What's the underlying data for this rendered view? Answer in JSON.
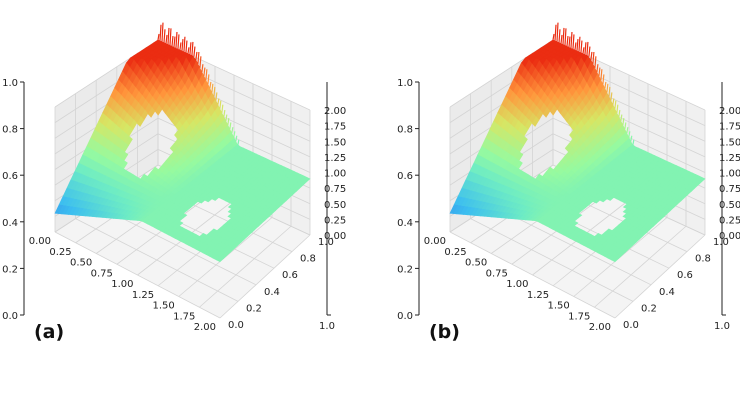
{
  "chart_data": [
    {
      "type": "surface3d",
      "panel_label": "(a)",
      "x_ticks": [
        "0.00",
        "0.25",
        "0.50",
        "0.75",
        "1.00",
        "1.25",
        "1.50",
        "1.75",
        "2.00"
      ],
      "y_ticks": [
        "0.0",
        "0.2",
        "0.4",
        "0.6",
        "0.8",
        "1.0"
      ],
      "z_ticks": [
        "0.00",
        "0.25",
        "0.50",
        "0.75",
        "1.00",
        "1.25",
        "1.50",
        "1.75",
        "2.00"
      ],
      "frame_ticks": [
        "0.0",
        "0.2",
        "0.4",
        "0.6",
        "0.8",
        "1.0"
      ],
      "frame_right_tick": "1.0",
      "xlim": [
        0,
        2
      ],
      "ylim": [
        0,
        1
      ],
      "zlim": [
        0,
        2
      ],
      "holes": [
        {
          "cx": 0.55,
          "cy": 0.5,
          "r": 0.2
        },
        {
          "cx": 1.5,
          "cy": 0.3,
          "r": 0.2
        }
      ],
      "colormap": "rainbow"
    },
    {
      "type": "surface3d",
      "panel_label": "(b)",
      "x_ticks": [
        "0.00",
        "0.25",
        "0.50",
        "0.75",
        "1.00",
        "1.25",
        "1.50",
        "1.75",
        "2.00"
      ],
      "y_ticks": [
        "0.0",
        "0.2",
        "0.4",
        "0.6",
        "0.8",
        "1.0"
      ],
      "z_ticks": [
        "0.00",
        "0.25",
        "0.50",
        "0.75",
        "1.00",
        "1.25",
        "1.50",
        "1.75",
        "2.00"
      ],
      "frame_ticks": [
        "0.0",
        "0.2",
        "0.4",
        "0.6",
        "0.8",
        "1.0"
      ],
      "frame_right_tick": "1.0",
      "xlim": [
        0,
        2
      ],
      "ylim": [
        0,
        1
      ],
      "zlim": [
        0,
        2
      ],
      "holes": [
        {
          "cx": 0.55,
          "cy": 0.5,
          "r": 0.2
        },
        {
          "cx": 1.5,
          "cy": 0.3,
          "r": 0.2
        }
      ],
      "colormap": "rainbow"
    }
  ]
}
